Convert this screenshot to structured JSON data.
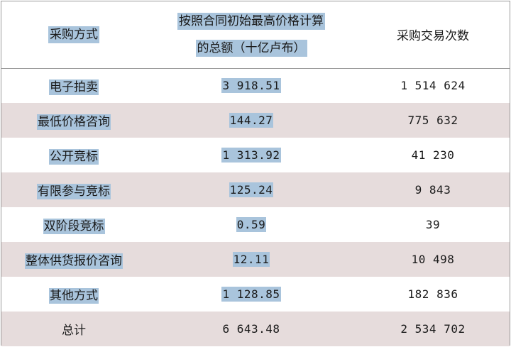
{
  "header": {
    "col1": "采购方式",
    "col2_line1": "按照合同初始最高价格计算",
    "col2_line2": "的总额（十亿卢布）",
    "col3": "采购交易次数"
  },
  "rows": [
    {
      "method": "电子拍卖",
      "amount": "3 918.51",
      "count": "1 514 624"
    },
    {
      "method": "最低价格咨询",
      "amount": "144.27",
      "count": "775 632"
    },
    {
      "method": "公开竞标",
      "amount": "1 313.92",
      "count": "41 230"
    },
    {
      "method": "有限参与竞标",
      "amount": "125.24",
      "count": "9 843"
    },
    {
      "method": "双阶段竞标",
      "amount": "0.59",
      "count": "39"
    },
    {
      "method": "整体供货报价咨询",
      "amount": "12.11",
      "count": "10 498"
    },
    {
      "method": "其他方式",
      "amount": "1 128.85",
      "count": "182 836"
    }
  ],
  "total": {
    "label": "总计",
    "amount": "6 643.48",
    "count": "2 534 702"
  },
  "colors": {
    "highlight": "#a9c4dc",
    "row_alt": "#e6dcdc"
  }
}
